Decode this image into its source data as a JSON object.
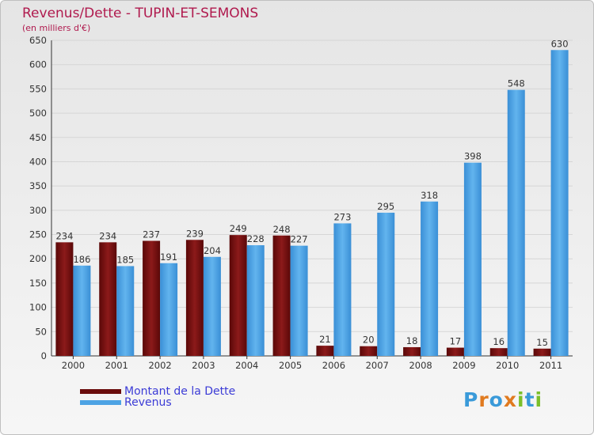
{
  "title": "Revenus/Dette - TUPIN-ET-SEMONS",
  "subtitle": "(en milliers d'€)",
  "chart_data": {
    "type": "bar",
    "categories": [
      "2000",
      "2001",
      "2002",
      "2003",
      "2004",
      "2005",
      "2006",
      "2007",
      "2008",
      "2009",
      "2010",
      "2011"
    ],
    "series": [
      {
        "name": "Montant de la Dette",
        "color": "#7a1010",
        "values": [
          234,
          234,
          237,
          239,
          249,
          248,
          21,
          20,
          18,
          17,
          16,
          15
        ]
      },
      {
        "name": "Revenus",
        "color": "#4da3e4",
        "values": [
          186,
          185,
          191,
          204,
          228,
          227,
          273,
          295,
          318,
          398,
          548,
          630
        ]
      }
    ],
    "ylim": [
      0,
      650
    ],
    "yticks": [
      0,
      50,
      100,
      150,
      200,
      250,
      300,
      350,
      400,
      450,
      500,
      550,
      600,
      650
    ],
    "grid": true,
    "legend": "bottom-left"
  },
  "logo": {
    "letters": [
      "P",
      "r",
      "o",
      "x",
      "i",
      "t",
      "i"
    ],
    "colors": [
      "#3a9ad9",
      "#e07a1f",
      "#3a9ad9",
      "#e07a1f",
      "#7bbf2a",
      "#3a9ad9",
      "#7bbf2a"
    ]
  }
}
